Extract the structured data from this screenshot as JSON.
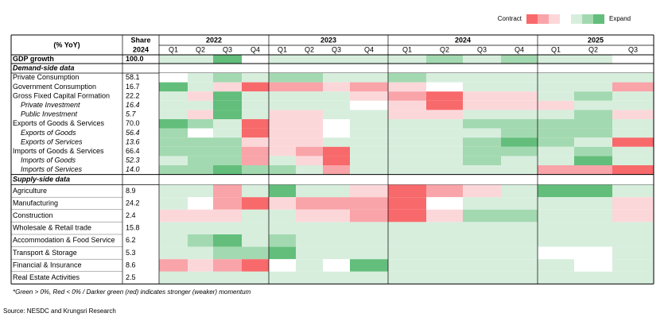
{
  "legend": {
    "contract": "Contract",
    "expand": "Expand"
  },
  "scale": {
    "levels": [
      -3,
      -2,
      -1,
      0,
      1,
      2,
      3
    ],
    "colors": [
      "#f8696b",
      "#f9a4a9",
      "#fcd7da",
      "#ffffff",
      "#d7eedd",
      "#a3d9b0",
      "#63be7b"
    ]
  },
  "header": {
    "label": "(% YoY)",
    "share": "Share",
    "share_year": "2024",
    "years": [
      {
        "year": "2022",
        "quarters": [
          "Q1",
          "Q2",
          "Q3",
          "Q4"
        ]
      },
      {
        "year": "2023",
        "quarters": [
          "Q1",
          "Q2",
          "Q3",
          "Q4"
        ]
      },
      {
        "year": "2024",
        "quarters": [
          "Q1",
          "Q2",
          "Q3",
          "Q4"
        ]
      },
      {
        "year": "2025",
        "quarters": [
          "Q1",
          "Q2",
          "Q3"
        ]
      }
    ]
  },
  "rows": [
    {
      "label": "GDP growth",
      "share": "100.0",
      "style": "bold",
      "heat": [
        1,
        1,
        3,
        0,
        1,
        1,
        1,
        1,
        1,
        2,
        1,
        2,
        1,
        1,
        null
      ]
    },
    {
      "section": "Demand-side data"
    },
    {
      "label": "Private Consumption",
      "share": "58.1",
      "style": "plain",
      "heat": [
        0,
        1,
        2,
        1,
        2,
        2,
        1,
        1,
        2,
        1,
        1,
        1,
        1,
        1,
        1
      ]
    },
    {
      "label": "Government Consumption",
      "share": "16.7",
      "style": "plain",
      "heat": [
        3,
        1,
        -1,
        -3,
        -2,
        -2,
        -1,
        -2,
        -1,
        0,
        1,
        1,
        1,
        1,
        -2
      ]
    },
    {
      "label": "Gross Fixed Capital Formation",
      "share": "22.2",
      "style": "plain",
      "heat": [
        1,
        -1,
        3,
        1,
        1,
        1,
        1,
        -1,
        -2,
        -3,
        -1,
        -1,
        1,
        2,
        1
      ]
    },
    {
      "label": "Private Investment",
      "share": "16.4",
      "style": "sub",
      "heat": [
        1,
        1,
        3,
        1,
        1,
        1,
        1,
        0,
        -1,
        -3,
        -1,
        -1,
        -1,
        1,
        1
      ]
    },
    {
      "label": "Public Investment",
      "share": "5.7",
      "style": "sub",
      "heat": [
        1,
        -1,
        3,
        1,
        -1,
        -1,
        1,
        1,
        -1,
        -1,
        1,
        1,
        1,
        2,
        -1
      ]
    },
    {
      "label": "Exports of Goods & Services",
      "share": "70.0",
      "style": "plain",
      "heat": [
        3,
        2,
        1,
        -3,
        -1,
        -1,
        0,
        1,
        1,
        1,
        2,
        2,
        2,
        2,
        1
      ]
    },
    {
      "label": "Exports of Goods",
      "share": "56.4",
      "style": "sub",
      "heat": [
        2,
        0,
        1,
        -3,
        -1,
        -1,
        0,
        1,
        1,
        1,
        1,
        2,
        2,
        2,
        1
      ]
    },
    {
      "label": "Exports of Services",
      "share": "13.6",
      "style": "sub",
      "heat": [
        2,
        2,
        2,
        -1,
        -1,
        -1,
        1,
        1,
        1,
        1,
        2,
        3,
        2,
        1,
        -3
      ]
    },
    {
      "label": "Imports of Goods & Services",
      "share": "66.4",
      "style": "plain",
      "heat": [
        2,
        2,
        2,
        -2,
        -1,
        -2,
        -3,
        1,
        1,
        1,
        2,
        2,
        1,
        2,
        1
      ]
    },
    {
      "label": "Imports of Goods",
      "share": "52.3",
      "style": "sub",
      "heat": [
        1,
        2,
        2,
        -2,
        1,
        -1,
        -3,
        1,
        1,
        1,
        2,
        1,
        1,
        3,
        1
      ]
    },
    {
      "label": "Imports of Services",
      "share": "14.0",
      "style": "sub",
      "heat": [
        2,
        2,
        3,
        2,
        2,
        1,
        -2,
        1,
        1,
        1,
        1,
        1,
        -2,
        -2,
        -3
      ]
    },
    {
      "section": "Supply-side data"
    },
    {
      "label": "Agriculture",
      "share": "8.9",
      "style": "plain",
      "heat": [
        1,
        1,
        -2,
        1,
        3,
        1,
        1,
        -1,
        -3,
        -2,
        -1,
        1,
        3,
        3,
        1
      ]
    },
    {
      "label": "Manufacturing",
      "share": "24.2",
      "style": "plain",
      "heat": [
        1,
        0,
        -2,
        -3,
        -1,
        -2,
        -2,
        -2,
        -3,
        0,
        1,
        1,
        1,
        1,
        -1
      ]
    },
    {
      "label": "Construction",
      "share": "2.4",
      "style": "plain",
      "heat": [
        -1,
        -1,
        -1,
        1,
        1,
        -1,
        -1,
        -2,
        -3,
        -1,
        2,
        2,
        1,
        1,
        -1
      ]
    },
    {
      "label": "Wholesale & Retail trade",
      "share": "15.8",
      "style": "plain",
      "heat": [
        1,
        1,
        1,
        1,
        1,
        1,
        1,
        1,
        1,
        1,
        1,
        1,
        1,
        1,
        1
      ]
    },
    {
      "label": "Accommodation & Food Service",
      "share": "6.2",
      "style": "plain",
      "heat": [
        1,
        2,
        3,
        1,
        2,
        1,
        1,
        1,
        1,
        1,
        1,
        1,
        1,
        1,
        1
      ]
    },
    {
      "label": "Transport & Storage",
      "share": "5.3",
      "style": "plain",
      "heat": [
        1,
        1,
        2,
        2,
        3,
        1,
        1,
        1,
        1,
        1,
        1,
        1,
        0,
        0,
        1
      ]
    },
    {
      "label": "Financial & Insurance",
      "share": "8.6",
      "style": "plain",
      "heat": [
        -2,
        -1,
        -2,
        -3,
        0,
        1,
        0,
        3,
        1,
        1,
        1,
        1,
        1,
        0,
        1
      ]
    },
    {
      "label": "Real Estate Activities",
      "share": "2.5",
      "style": "plain",
      "heat": [
        1,
        1,
        1,
        1,
        1,
        1,
        1,
        1,
        1,
        1,
        1,
        1,
        1,
        1,
        1
      ]
    }
  ],
  "footnote": "*Green > 0%, Red < 0% / Darker green (red) indicates stronger (weaker) momentum",
  "source": "Source: NESDC and Krungsri Research"
}
